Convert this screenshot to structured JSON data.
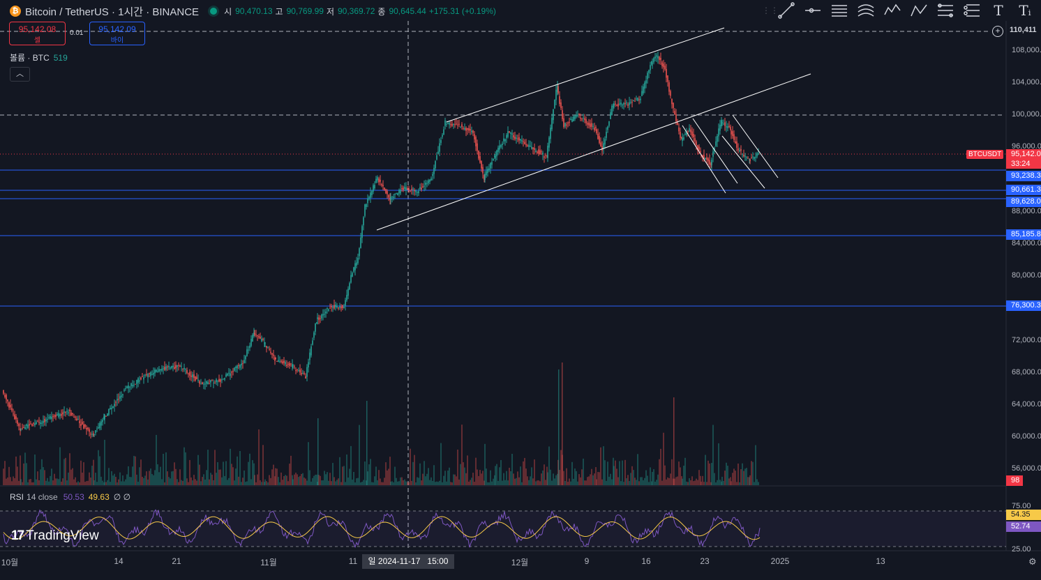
{
  "header": {
    "coin_icon": "bitcoin-icon",
    "title": "Bitcoin / TetherUS · 1시간 · BINANCE",
    "status_color": "#089981",
    "ohlc": [
      {
        "label": "시",
        "value": "90,470.13"
      },
      {
        "label": "고",
        "value": "90,769.99"
      },
      {
        "label": "저",
        "value": "90,369.72"
      },
      {
        "label": "종",
        "value": "90,645.44"
      }
    ],
    "change": "+175.31 (+0.19%)"
  },
  "trade": {
    "sell_price": "95,142.08",
    "sell_label": "셀",
    "spread": "0.01",
    "buy_price": "95,142.09",
    "buy_label": "바이"
  },
  "volume_legend": {
    "label": "볼륨 · BTC",
    "value": "519"
  },
  "toolbar": {
    "tools": [
      "trend-line-icon",
      "horizontal-ray-icon",
      "parallel-channel-icon",
      "regression-channel-icon",
      "xabcd-pattern-icon",
      "abcd-pattern-icon",
      "fib-retracement-icon",
      "fib-extension-icon",
      "text-icon",
      "text-style-icon"
    ]
  },
  "price_scale": {
    "ticks": [
      "108,000.00",
      "104,000.00",
      "100,000.00",
      "96,000.00",
      "88,000.00",
      "84,000.00",
      "80,000.00",
      "72,000.00",
      "68,000.00",
      "64,000.00",
      "60,000.00",
      "56,000.00"
    ],
    "top_label": "110,411",
    "symbol_label": "BTCUSDT",
    "current_price": "95,142.0",
    "countdown": "33:24",
    "levels": [
      "93,238.3",
      "90,661.3",
      "89,628.0",
      "85,185.8",
      "76,300.3"
    ],
    "volume_tag": "98"
  },
  "rsi": {
    "label": "RSI",
    "params": "14 close",
    "value1": "50.53",
    "value2": "49.63",
    "value3": "∅ ∅",
    "ticks": [
      "75.00",
      "25.00"
    ],
    "tag_ma": "54.35",
    "tag_rsi": "52.74"
  },
  "watermark": "TradingView",
  "time_axis": {
    "ticks": [
      "10월",
      "14",
      "21",
      "11월",
      "11",
      "12월",
      "9",
      "16",
      "23",
      "2025",
      "13"
    ],
    "crosshair_date": "일 2024-11-17",
    "crosshair_time": "15:00"
  },
  "colors": {
    "background": "#131722",
    "up": "#26a69a",
    "down": "#ef5350",
    "level_line": "#2962ff",
    "channel_line": "#ffffff"
  }
}
